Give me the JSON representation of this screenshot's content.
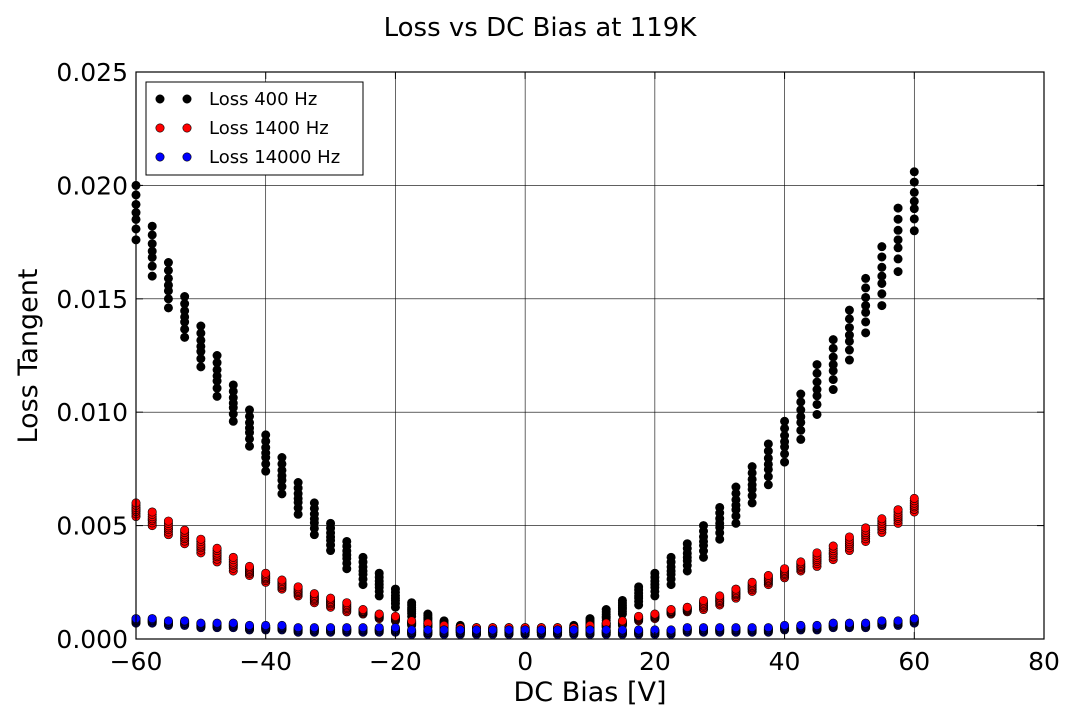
{
  "chart_data": {
    "type": "scatter",
    "title": "Loss vs DC Bias at 119K",
    "xlabel": "DC Bias [V]",
    "ylabel": "Loss Tangent",
    "xlim": [
      -60,
      80
    ],
    "ylim": [
      0,
      0.025
    ],
    "xticks": [
      -60,
      -40,
      -20,
      0,
      20,
      40,
      60,
      80
    ],
    "xtick_labels": [
      "−60",
      "−40",
      "−20",
      "0",
      "20",
      "40",
      "60",
      "80"
    ],
    "yticks": [
      0,
      0.005,
      0.01,
      0.015,
      0.02,
      0.025
    ],
    "ytick_labels": [
      "0.000",
      "0.005",
      "0.010",
      "0.015",
      "0.020",
      "0.025"
    ],
    "grid": true,
    "legend_position": "top-left",
    "x": [
      -60,
      -57.5,
      -55,
      -52.5,
      -50,
      -47.5,
      -45,
      -42.5,
      -40,
      -37.5,
      -35,
      -32.5,
      -30,
      -27.5,
      -25,
      -22.5,
      -20,
      -17.5,
      -15,
      -12.5,
      -10,
      -7.5,
      -5,
      -2.5,
      0,
      2.5,
      5,
      7.5,
      10,
      12.5,
      15,
      17.5,
      20,
      22.5,
      25,
      27.5,
      30,
      32.5,
      35,
      37.5,
      40,
      42.5,
      45,
      47.5,
      50,
      52.5,
      55,
      57.5,
      60
    ],
    "series": [
      {
        "name": "Loss 400 Hz",
        "color": "#000000",
        "values": [
          0.0188,
          0.0171,
          0.0156,
          0.0142,
          0.0129,
          0.0116,
          0.0104,
          0.0093,
          0.0082,
          0.0072,
          0.0062,
          0.0053,
          0.0045,
          0.0037,
          0.003,
          0.0024,
          0.0018,
          0.0013,
          0.0009,
          0.0007,
          0.0005,
          0.0004,
          0.0004,
          0.0004,
          0.0004,
          0.0004,
          0.0004,
          0.0005,
          0.0007,
          0.001,
          0.0014,
          0.0019,
          0.0024,
          0.003,
          0.0036,
          0.0043,
          0.0051,
          0.0059,
          0.0068,
          0.0077,
          0.0087,
          0.0098,
          0.011,
          0.0121,
          0.0134,
          0.0147,
          0.016,
          0.0176,
          0.0193
        ],
        "spread": [
          0.0012,
          0.0011,
          0.001,
          0.0009,
          0.0009,
          0.0009,
          0.0008,
          0.0008,
          0.0008,
          0.0008,
          0.0007,
          0.0007,
          0.0006,
          0.0006,
          0.0006,
          0.0005,
          0.0004,
          0.0003,
          0.0002,
          0.0001,
          0.0001,
          0.0001,
          0.0001,
          0.0001,
          0.0001,
          0.0001,
          0.0001,
          0.0001,
          0.0002,
          0.0003,
          0.0003,
          0.0004,
          0.0005,
          0.0006,
          0.0006,
          0.0007,
          0.0007,
          0.0008,
          0.0008,
          0.0009,
          0.0009,
          0.001,
          0.0011,
          0.0011,
          0.0011,
          0.0012,
          0.0013,
          0.0014,
          0.0013
        ]
      },
      {
        "name": "Loss 1400 Hz",
        "color": "#ff0000",
        "values": [
          0.0057,
          0.0053,
          0.0049,
          0.0045,
          0.0041,
          0.0037,
          0.0033,
          0.003,
          0.0027,
          0.0024,
          0.0021,
          0.0018,
          0.0016,
          0.0014,
          0.0012,
          0.001,
          0.0009,
          0.0007,
          0.0006,
          0.0005,
          0.0004,
          0.0004,
          0.0004,
          0.0004,
          0.0004,
          0.0004,
          0.0004,
          0.0004,
          0.0005,
          0.0006,
          0.0007,
          0.0009,
          0.001,
          0.0012,
          0.0013,
          0.0015,
          0.0017,
          0.002,
          0.0023,
          0.0026,
          0.0029,
          0.0032,
          0.0035,
          0.0038,
          0.0042,
          0.0046,
          0.005,
          0.0054,
          0.0059
        ],
        "spread": [
          0.0003,
          0.0003,
          0.0003,
          0.0003,
          0.0003,
          0.0003,
          0.0003,
          0.0002,
          0.0002,
          0.0002,
          0.0002,
          0.0002,
          0.0002,
          0.0002,
          0.0001,
          0.0001,
          0.0001,
          0.0001,
          0.0001,
          0.0001,
          0.0001,
          0.0001,
          0.0001,
          0.0001,
          0.0001,
          0.0001,
          0.0001,
          0.0001,
          0.0001,
          0.0001,
          0.0001,
          0.0001,
          0.0001,
          0.0001,
          0.0001,
          0.0002,
          0.0002,
          0.0002,
          0.0002,
          0.0002,
          0.0002,
          0.0002,
          0.0003,
          0.0003,
          0.0003,
          0.0003,
          0.0003,
          0.0003,
          0.0003
        ]
      },
      {
        "name": "Loss 14000 Hz",
        "color": "#0000ff",
        "values": [
          0.0008,
          0.0008,
          0.0007,
          0.0007,
          0.0006,
          0.0006,
          0.0006,
          0.0005,
          0.0005,
          0.0005,
          0.0004,
          0.0004,
          0.0004,
          0.0004,
          0.0004,
          0.0004,
          0.0004,
          0.0003,
          0.0003,
          0.0003,
          0.0003,
          0.0003,
          0.0003,
          0.0003,
          0.0003,
          0.0003,
          0.0003,
          0.0003,
          0.0003,
          0.0003,
          0.0003,
          0.0003,
          0.0003,
          0.0003,
          0.0004,
          0.0004,
          0.0004,
          0.0004,
          0.0004,
          0.0004,
          0.0005,
          0.0005,
          0.0005,
          0.0006,
          0.0006,
          0.0006,
          0.0007,
          0.0007,
          0.0008
        ],
        "spread": [
          0.0001,
          0.0001,
          0.0001,
          0.0001,
          0.0001,
          0.0001,
          0.0001,
          0.0001,
          0.0001,
          0.0001,
          0.0001,
          0.0001,
          0.0001,
          0.0001,
          0.0001,
          0.0001,
          0.0001,
          0.0001,
          0.0001,
          0.0001,
          0.0001,
          0.0001,
          0.0001,
          0.0001,
          0.0001,
          0.0001,
          0.0001,
          0.0001,
          0.0001,
          0.0001,
          0.0001,
          0.0001,
          0.0001,
          0.0001,
          0.0001,
          0.0001,
          0.0001,
          0.0001,
          0.0001,
          0.0001,
          0.0001,
          0.0001,
          0.0001,
          0.0001,
          0.0001,
          0.0001,
          0.0001,
          0.0001,
          0.0001
        ]
      }
    ]
  }
}
